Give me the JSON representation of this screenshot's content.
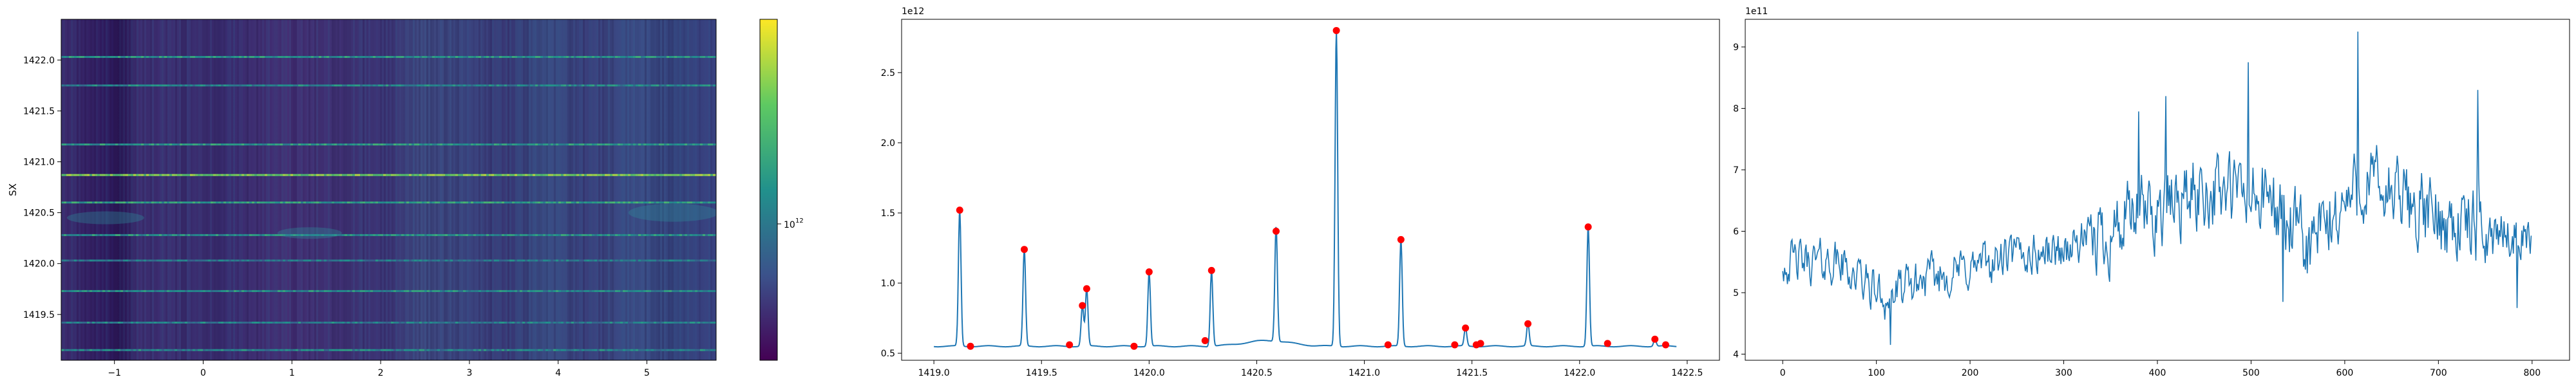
{
  "chart_data": [
    {
      "type": "heatmap",
      "title": "",
      "xlabel": "",
      "ylabel": "SX",
      "xlim": [
        -1.6,
        5.78
      ],
      "ylim": [
        1419.05,
        1422.4
      ],
      "x_ticks": [
        -1,
        0,
        1,
        2,
        3,
        4,
        5
      ],
      "x_tick_labels": [
        "−1",
        "0",
        "1",
        "2",
        "3",
        "4",
        "5"
      ],
      "y_ticks": [
        1419.5,
        1420.0,
        1420.5,
        1421.0,
        1421.5,
        1422.0
      ],
      "y_tick_labels": [
        "1419.5",
        "1420.0",
        "1420.5",
        "1421.0",
        "1421.5",
        "1422.0"
      ],
      "colormap": "viridis",
      "colorbar": {
        "scale": "log",
        "tick_label": "10",
        "tick_exponent": "12",
        "tick_fraction": 0.4
      },
      "bright_rows": [
        {
          "y": 1419.15,
          "level": 0.45
        },
        {
          "y": 1419.42,
          "level": 0.42
        },
        {
          "y": 1419.73,
          "level": 0.48
        },
        {
          "y": 1420.03,
          "level": 0.4
        },
        {
          "y": 1420.28,
          "level": 0.5
        },
        {
          "y": 1420.6,
          "level": 0.55
        },
        {
          "y": 1420.87,
          "level": 0.78
        },
        {
          "y": 1421.17,
          "level": 0.52
        },
        {
          "y": 1421.75,
          "level": 0.45
        },
        {
          "y": 1422.03,
          "level": 0.5
        }
      ],
      "colors": {
        "bg_dark": "#3b2a6e",
        "band": "#3a8f8a"
      }
    },
    {
      "type": "line",
      "title": "",
      "xlabel": "",
      "ylabel": "",
      "xlim": [
        1418.85,
        1422.65
      ],
      "ylim": [
        0.45,
        2.88
      ],
      "y_offset_label": "1e12",
      "x_ticks": [
        1419.0,
        1419.5,
        1420.0,
        1420.5,
        1421.0,
        1421.5,
        1422.0,
        1422.5
      ],
      "x_tick_labels": [
        "1419.0",
        "1419.5",
        "1420.0",
        "1420.5",
        "1421.0",
        "1421.5",
        "1422.0",
        "1422.5"
      ],
      "y_ticks": [
        0.5,
        1.0,
        1.5,
        2.0,
        2.5
      ],
      "y_tick_labels": [
        "0.5",
        "1.0",
        "1.5",
        "2.0",
        "2.5"
      ],
      "baseline": 0.55,
      "peaks": [
        {
          "x": 1419.12,
          "y": 1.52
        },
        {
          "x": 1419.42,
          "y": 1.24
        },
        {
          "x": 1419.69,
          "y": 0.84
        },
        {
          "x": 1419.71,
          "y": 0.96
        },
        {
          "x": 1420.0,
          "y": 1.08
        },
        {
          "x": 1420.29,
          "y": 1.09
        },
        {
          "x": 1420.59,
          "y": 1.37
        },
        {
          "x": 1420.87,
          "y": 2.8
        },
        {
          "x": 1421.17,
          "y": 1.31
        },
        {
          "x": 1421.47,
          "y": 0.68
        },
        {
          "x": 1421.76,
          "y": 0.71
        },
        {
          "x": 1422.04,
          "y": 1.4
        },
        {
          "x": 1422.35,
          "y": 0.6
        }
      ],
      "markers": [
        {
          "x": 1419.12,
          "y": 1.52
        },
        {
          "x": 1419.17,
          "y": 0.55
        },
        {
          "x": 1419.42,
          "y": 1.24
        },
        {
          "x": 1419.63,
          "y": 0.56
        },
        {
          "x": 1419.69,
          "y": 0.84
        },
        {
          "x": 1419.71,
          "y": 0.96
        },
        {
          "x": 1419.93,
          "y": 0.55
        },
        {
          "x": 1420.0,
          "y": 1.08
        },
        {
          "x": 1420.26,
          "y": 0.59
        },
        {
          "x": 1420.29,
          "y": 1.09
        },
        {
          "x": 1420.59,
          "y": 1.37
        },
        {
          "x": 1420.87,
          "y": 2.8
        },
        {
          "x": 1421.11,
          "y": 0.56
        },
        {
          "x": 1421.17,
          "y": 1.31
        },
        {
          "x": 1421.42,
          "y": 0.56
        },
        {
          "x": 1421.47,
          "y": 0.68
        },
        {
          "x": 1421.52,
          "y": 0.56
        },
        {
          "x": 1421.54,
          "y": 0.57
        },
        {
          "x": 1421.76,
          "y": 0.71
        },
        {
          "x": 1422.04,
          "y": 1.4
        },
        {
          "x": 1422.13,
          "y": 0.57
        },
        {
          "x": 1422.35,
          "y": 0.6
        },
        {
          "x": 1422.4,
          "y": 0.56
        }
      ],
      "colors": {
        "line": "#1f77b4",
        "marker": "#ff0000"
      }
    },
    {
      "type": "line",
      "title": "",
      "xlabel": "",
      "ylabel": "",
      "xlim": [
        -40,
        840
      ],
      "ylim": [
        3.9,
        9.45
      ],
      "y_offset_label": "1e11",
      "x_ticks": [
        0,
        100,
        200,
        300,
        400,
        500,
        600,
        700,
        800
      ],
      "x_tick_labels": [
        "0",
        "100",
        "200",
        "300",
        "400",
        "500",
        "600",
        "700",
        "800"
      ],
      "y_ticks": [
        4,
        5,
        6,
        7,
        8,
        9
      ],
      "y_tick_labels": [
        "4",
        "5",
        "6",
        "7",
        "8",
        "9"
      ],
      "trend": [
        {
          "x": 0,
          "y": 5.5
        },
        {
          "x": 60,
          "y": 5.5
        },
        {
          "x": 110,
          "y": 4.9
        },
        {
          "x": 150,
          "y": 5.2
        },
        {
          "x": 250,
          "y": 5.6
        },
        {
          "x": 300,
          "y": 5.7
        },
        {
          "x": 380,
          "y": 6.2
        },
        {
          "x": 450,
          "y": 6.7
        },
        {
          "x": 520,
          "y": 6.5
        },
        {
          "x": 560,
          "y": 5.7
        },
        {
          "x": 620,
          "y": 6.8
        },
        {
          "x": 700,
          "y": 6.2
        },
        {
          "x": 760,
          "y": 6.0
        },
        {
          "x": 800,
          "y": 5.9
        }
      ],
      "series_points": 800,
      "colors": {
        "line": "#1f77b4"
      }
    }
  ]
}
